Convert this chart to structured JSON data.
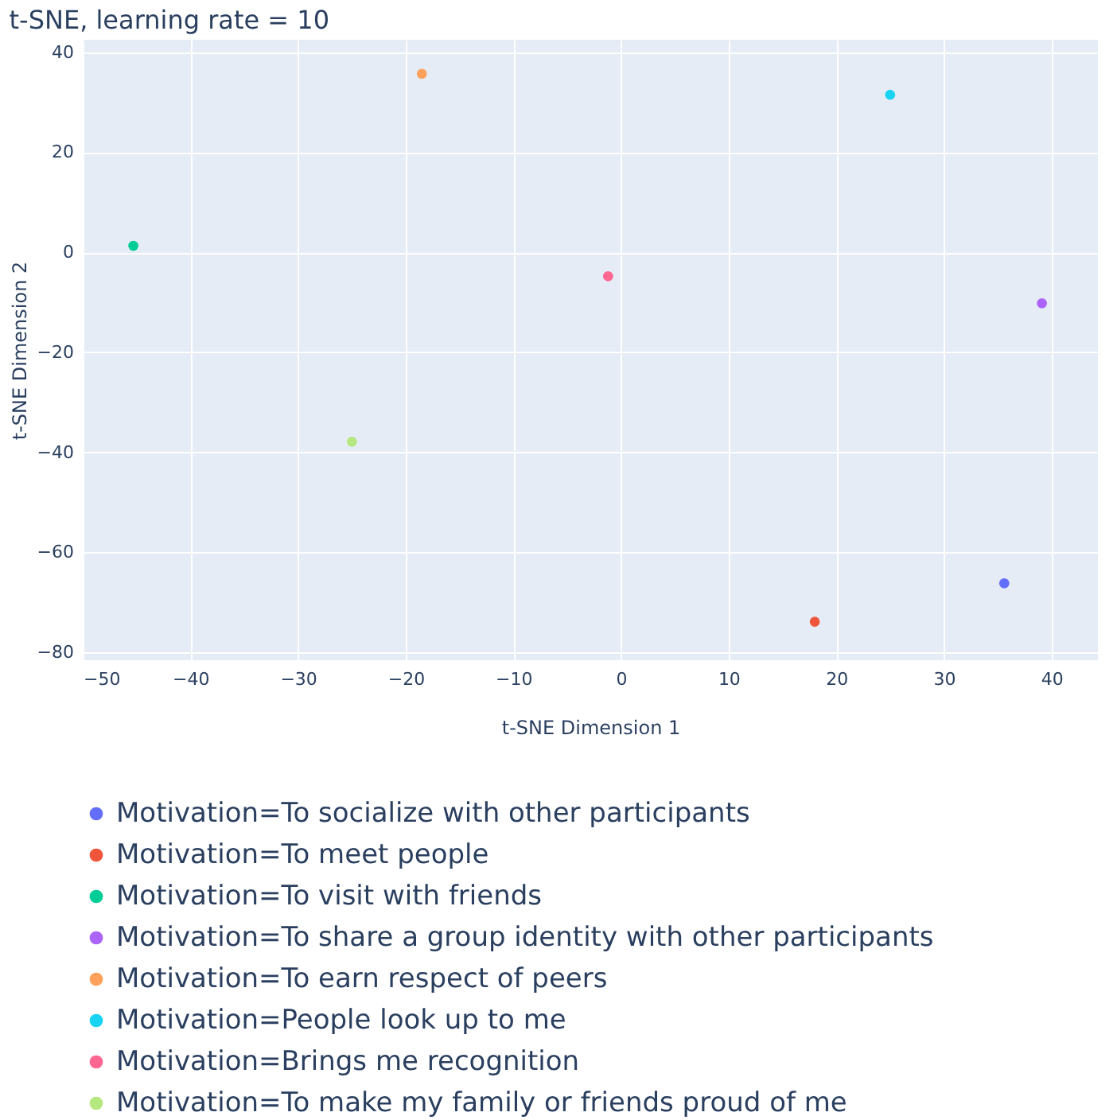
{
  "chart_data": {
    "type": "scatter",
    "title": "t-SNE, learning rate = 10",
    "xlabel": "t-SNE Dimension 1",
    "ylabel": "t-SNE Dimension 2",
    "xlim": [
      -50,
      44.3
    ],
    "ylim": [
      -81.6,
      42.5
    ],
    "xticks": [
      -50,
      -40,
      -30,
      -20,
      -10,
      0,
      10,
      20,
      30,
      40
    ],
    "yticks": [
      -80,
      -60,
      -40,
      -20,
      0,
      20,
      40
    ],
    "grid": true,
    "legend": "bottom",
    "marker": "circle",
    "series": [
      {
        "name": "Motivation=To socialize with other participants",
        "color": "#636efa",
        "x": [
          35.6
        ],
        "values": [
          -66.2
        ]
      },
      {
        "name": "Motivation=To meet people",
        "color": "#ef553b",
        "x": [
          18.0
        ],
        "values": [
          -73.9
        ]
      },
      {
        "name": "Motivation=To visit with friends",
        "color": "#00cc96",
        "x": [
          -45.3
        ],
        "values": [
          1.3
        ]
      },
      {
        "name": "Motivation=To share a group identity with other participants",
        "color": "#ab63fa",
        "x": [
          39.1
        ],
        "values": [
          -10.2
        ]
      },
      {
        "name": "Motivation=To earn respect of peers",
        "color": "#ffa15a",
        "x": [
          -18.5
        ],
        "values": [
          35.7
        ]
      },
      {
        "name": "Motivation=People look up to me",
        "color": "#19d3f3",
        "x": [
          25.0
        ],
        "values": [
          31.5
        ]
      },
      {
        "name": "Motivation=Brings me recognition",
        "color": "#ff6692",
        "x": [
          -1.2
        ],
        "values": [
          -4.8
        ]
      },
      {
        "name": "Motivation=To make my family or friends proud of me",
        "color": "#b6e880",
        "x": [
          -25.0
        ],
        "values": [
          -37.9
        ]
      }
    ]
  }
}
